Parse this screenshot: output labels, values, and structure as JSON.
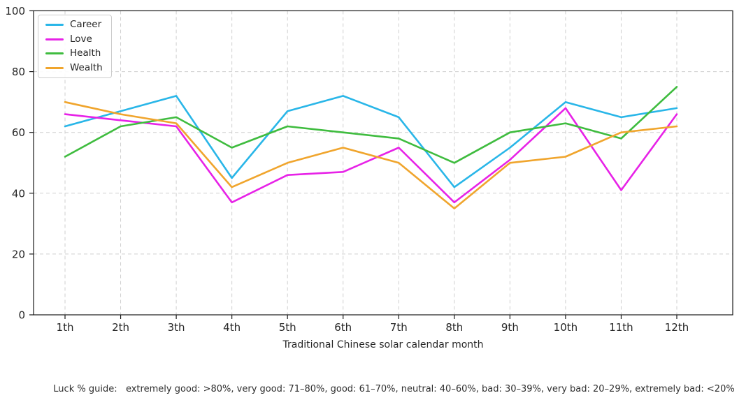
{
  "figure": {
    "xlabel": "Traditional Chinese solar calendar month",
    "caption": "Luck % guide:   extremely good: >80%, very good: 71–80%, good: 61–70%, neutral: 40–60%, bad: 30–39%, very bad: 20–29%, extremely bad: <20%"
  },
  "chart_data": {
    "type": "line",
    "title": "",
    "xlabel": "Traditional Chinese solar calendar month",
    "ylabel": "",
    "categories": [
      "1th",
      "2th",
      "3th",
      "4th",
      "5th",
      "6th",
      "7th",
      "8th",
      "9th",
      "10th",
      "11th",
      "12th"
    ],
    "ylim": [
      0,
      100
    ],
    "yticks": [
      0,
      20,
      40,
      60,
      80,
      100
    ],
    "grid": "dashed-both-axes",
    "legend_position": "top-left",
    "series": [
      {
        "name": "Career",
        "color": "#29B6E8",
        "values": [
          62,
          67,
          72,
          45,
          67,
          72,
          65,
          42,
          55,
          70,
          65,
          68
        ]
      },
      {
        "name": "Love",
        "color": "#E722E7",
        "values": [
          66,
          64,
          62,
          37,
          46,
          47,
          55,
          37,
          51,
          68,
          41,
          66
        ]
      },
      {
        "name": "Health",
        "color": "#3FBC3F",
        "values": [
          52,
          62,
          65,
          55,
          62,
          60,
          58,
          50,
          60,
          63,
          58,
          75
        ]
      },
      {
        "name": "Wealth",
        "color": "#F0A52D",
        "values": [
          70,
          66,
          63,
          42,
          50,
          55,
          50,
          35,
          50,
          52,
          60,
          62
        ]
      }
    ]
  }
}
